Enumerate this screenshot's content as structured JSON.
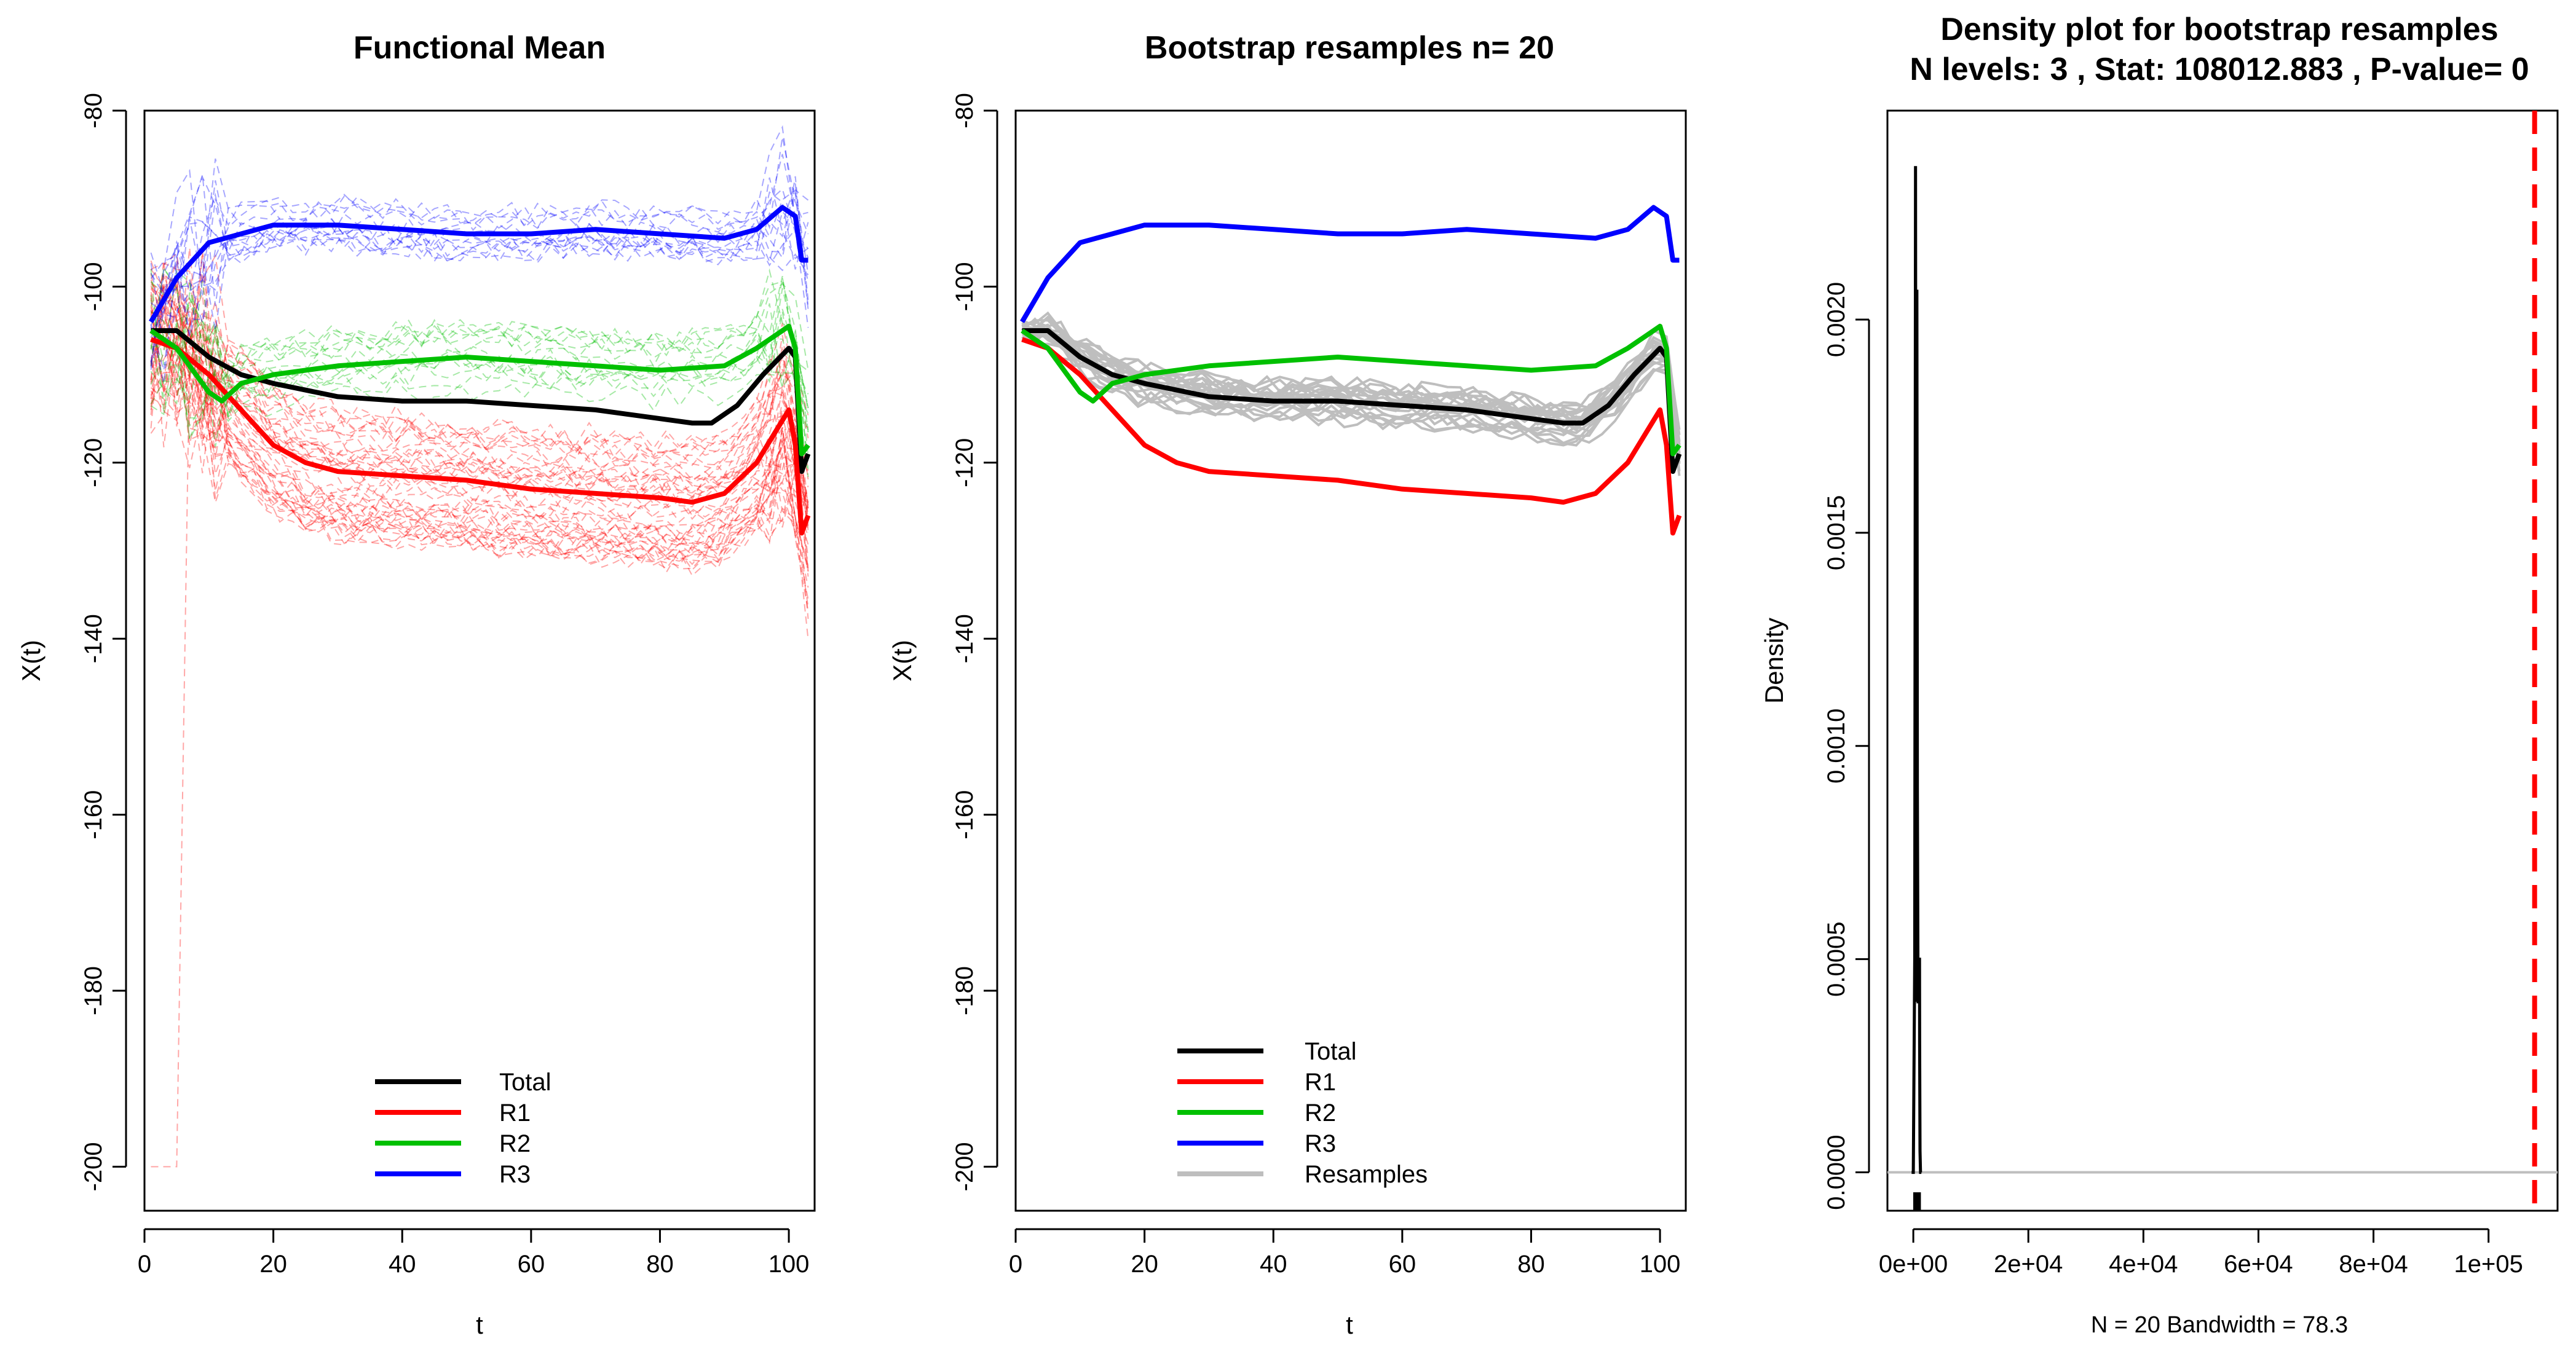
{
  "figure": "Functional ANOVA bootstrap output (3 panels)",
  "chart_data": [
    {
      "type": "line",
      "title": "Functional Mean",
      "xlabel": "t",
      "ylabel": "X(t)",
      "xlim": [
        0,
        104
      ],
      "ylim": [
        -205,
        -80
      ],
      "xticks": [
        0,
        20,
        40,
        60,
        80,
        100
      ],
      "yticks": [
        -200,
        -180,
        -160,
        -140,
        -120,
        -100,
        -80
      ],
      "grid": false,
      "background_curves": "thin dashed individual curves per group (red R1, green R2, blue R3)",
      "series": [
        {
          "name": "Total",
          "color": "#000000",
          "x": [
            1,
            5,
            10,
            15,
            20,
            30,
            40,
            50,
            60,
            70,
            80,
            85,
            88,
            92,
            96,
            100,
            101,
            102,
            103
          ],
          "values": [
            -105,
            -105,
            -108,
            -110,
            -111,
            -112.5,
            -113,
            -113,
            -113.5,
            -114,
            -115,
            -115.5,
            -115.5,
            -113.5,
            -110,
            -107,
            -108,
            -121,
            -119
          ]
        },
        {
          "name": "R1",
          "color": "#ff0000",
          "x": [
            1,
            5,
            10,
            15,
            20,
            25,
            30,
            40,
            50,
            60,
            70,
            80,
            85,
            90,
            95,
            100,
            101,
            102,
            103
          ],
          "values": [
            -106,
            -107,
            -110,
            -114,
            -118,
            -120,
            -121,
            -121.5,
            -122,
            -123,
            -123.5,
            -124,
            -124.5,
            -123.5,
            -120,
            -114,
            -118,
            -128,
            -126
          ]
        },
        {
          "name": "R2",
          "color": "#00c000",
          "x": [
            1,
            5,
            8,
            10,
            12,
            15,
            20,
            30,
            40,
            50,
            60,
            70,
            80,
            90,
            95,
            100,
            101,
            102,
            103
          ],
          "values": [
            -105,
            -107,
            -110,
            -112,
            -113,
            -111,
            -110,
            -109,
            -108.5,
            -108,
            -108.5,
            -109,
            -109.5,
            -109,
            -107,
            -104.5,
            -107,
            -119,
            -118
          ]
        },
        {
          "name": "R3",
          "color": "#0000ff",
          "x": [
            1,
            5,
            10,
            15,
            20,
            25,
            30,
            40,
            50,
            60,
            70,
            80,
            90,
            95,
            99,
            101,
            102,
            103
          ],
          "values": [
            -104,
            -99,
            -95,
            -94,
            -93,
            -93,
            -93,
            -93.5,
            -94,
            -94,
            -93.5,
            -94,
            -94.5,
            -93.5,
            -91,
            -92,
            -97,
            -97
          ]
        }
      ],
      "legend": {
        "position": "bottom-center",
        "entries": [
          "Total",
          "R1",
          "R2",
          "R3"
        ]
      }
    },
    {
      "type": "line",
      "title": "Bootstrap resamples n= 20",
      "xlabel": "t",
      "ylabel": "X(t)",
      "xlim": [
        0,
        104
      ],
      "ylim": [
        -205,
        -80
      ],
      "xticks": [
        0,
        20,
        40,
        60,
        80,
        100
      ],
      "yticks": [
        -200,
        -180,
        -160,
        -140,
        -120,
        -100,
        -80
      ],
      "grid": false,
      "resamples": {
        "name": "Resamples",
        "color": "#bebebe",
        "count": 20,
        "centered_on": "Total"
      },
      "series": [
        {
          "name": "Total",
          "color": "#000000",
          "x": [
            1,
            5,
            10,
            15,
            20,
            30,
            40,
            50,
            60,
            70,
            80,
            85,
            88,
            92,
            96,
            100,
            101,
            102,
            103
          ],
          "values": [
            -105,
            -105,
            -108,
            -110,
            -111,
            -112.5,
            -113,
            -113,
            -113.5,
            -114,
            -115,
            -115.5,
            -115.5,
            -113.5,
            -110,
            -107,
            -108,
            -121,
            -119
          ]
        },
        {
          "name": "R1",
          "color": "#ff0000",
          "x": [
            1,
            5,
            10,
            15,
            20,
            25,
            30,
            40,
            50,
            60,
            70,
            80,
            85,
            90,
            95,
            100,
            101,
            102,
            103
          ],
          "values": [
            -106,
            -107,
            -110,
            -114,
            -118,
            -120,
            -121,
            -121.5,
            -122,
            -123,
            -123.5,
            -124,
            -124.5,
            -123.5,
            -120,
            -114,
            -118,
            -128,
            -126
          ]
        },
        {
          "name": "R2",
          "color": "#00c000",
          "x": [
            1,
            5,
            8,
            10,
            12,
            15,
            20,
            30,
            40,
            50,
            60,
            70,
            80,
            90,
            95,
            100,
            101,
            102,
            103
          ],
          "values": [
            -105,
            -107,
            -110,
            -112,
            -113,
            -111,
            -110,
            -109,
            -108.5,
            -108,
            -108.5,
            -109,
            -109.5,
            -109,
            -107,
            -104.5,
            -107,
            -119,
            -118
          ]
        },
        {
          "name": "R3",
          "color": "#0000ff",
          "x": [
            1,
            5,
            10,
            15,
            20,
            25,
            30,
            40,
            50,
            60,
            70,
            80,
            90,
            95,
            99,
            101,
            102,
            103
          ],
          "values": [
            -104,
            -99,
            -95,
            -94,
            -93,
            -93,
            -93,
            -93.5,
            -94,
            -94,
            -93.5,
            -94,
            -94.5,
            -93.5,
            -91,
            -92,
            -97,
            -97
          ]
        }
      ],
      "legend": {
        "position": "bottom-center",
        "entries": [
          "Total",
          "R1",
          "R2",
          "R3",
          "Resamples"
        ]
      }
    },
    {
      "type": "line",
      "title": "Density plot for bootstrap resamples",
      "subtitle": "N levels: 3 , Stat: 108012.883 , P-value= 0",
      "xlabel": "N = 20   Bandwidth = 78.3",
      "ylabel": "Density",
      "xlim": [
        -4500,
        112000
      ],
      "ylim": [
        -9e-05,
        0.00249
      ],
      "xticks": [
        0,
        20000,
        40000,
        60000,
        80000,
        100000
      ],
      "xtick_labels": [
        "0e+00",
        "2e+04",
        "4e+04",
        "6e+04",
        "8e+04",
        "1e+05"
      ],
      "yticks": [
        0,
        0.0005,
        0.001,
        0.0015,
        0.002
      ],
      "ytick_labels": [
        "0.0000",
        "0.0005",
        "0.0010",
        "0.0015",
        "0.0020"
      ],
      "grid": false,
      "density": {
        "x": [
          -300,
          0,
          250,
          380,
          500,
          560,
          620,
          700,
          820,
          900,
          1000,
          1080,
          1100,
          1160,
          1250,
          1400
        ],
        "y": [
          0,
          0,
          0.0005,
          0.00236,
          0.0006,
          0.0004,
          0.00207,
          0.0009,
          0.0004,
          0.0004,
          0.0005,
          0.0005,
          0.0003,
          5e-05,
          0,
          0
        ]
      },
      "rug": [
        250,
        400,
        520,
        600,
        680,
        780,
        900,
        1050
      ],
      "baseline": {
        "y": 0,
        "color": "#bebebe"
      },
      "observed_stat": {
        "value": 108012.883,
        "color": "#ff0000",
        "style": "dashed"
      }
    }
  ]
}
